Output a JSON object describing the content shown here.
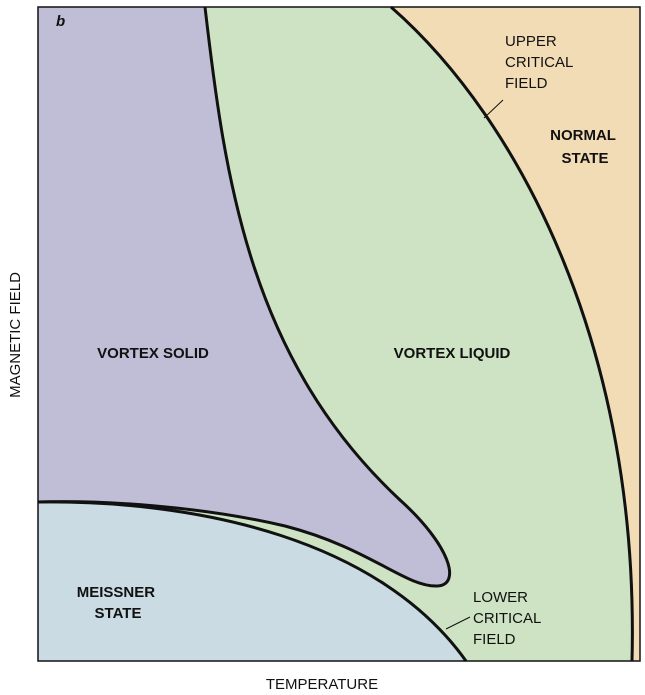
{
  "panel_label": "b",
  "axes": {
    "x_label": "TEMPERATURE",
    "y_label": "MAGNETIC FIELD"
  },
  "regions": {
    "vortex_solid": "VORTEX SOLID",
    "vortex_liquid": "VORTEX LIQUID",
    "normal_state": [
      "NORMAL",
      "STATE"
    ],
    "meissner_state": [
      "MEISSNER",
      "STATE"
    ]
  },
  "boundaries": {
    "upper_critical_field": [
      "UPPER",
      "CRITICAL",
      "FIELD"
    ],
    "lower_critical_field": [
      "LOWER",
      "CRITICAL",
      "FIELD"
    ]
  }
}
